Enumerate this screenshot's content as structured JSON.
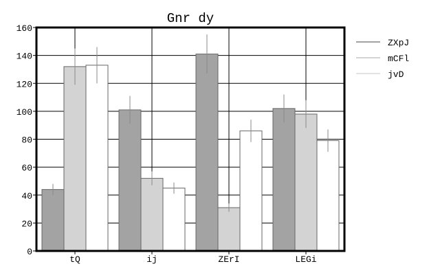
{
  "chart_data": {
    "type": "bar",
    "title": "Gnr dy",
    "xlabel": "",
    "ylabel": "",
    "categories": [
      "tQ",
      "ij",
      "ZErI",
      "LEGi"
    ],
    "series": [
      {
        "name": "ZXpJ",
        "color": "#a3a3a3",
        "values": [
          44,
          101,
          141,
          102
        ],
        "errors": [
          4,
          10,
          14,
          10
        ]
      },
      {
        "name": "mCFl",
        "color": "#d3d3d3",
        "values": [
          132,
          52,
          31,
          98
        ],
        "errors": [
          13,
          5,
          3,
          10
        ]
      },
      {
        "name": "jvD",
        "color": "#ffffff",
        "values": [
          133,
          45,
          86,
          79
        ],
        "errors": [
          13,
          4,
          8,
          8
        ]
      }
    ],
    "ylim": [
      0,
      160
    ],
    "yticks": [
      0,
      20,
      40,
      60,
      80,
      100,
      120,
      140,
      160
    ],
    "grid": true,
    "legend": "right"
  }
}
